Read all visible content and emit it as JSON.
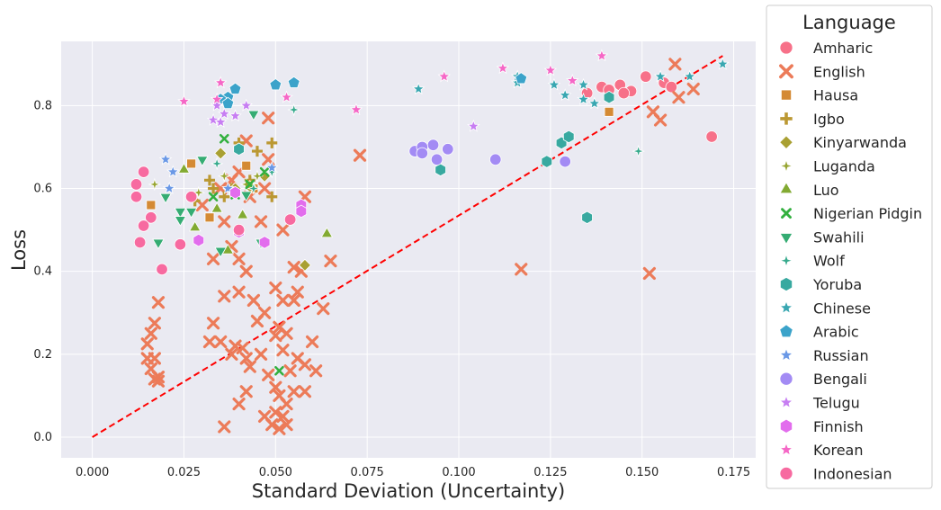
{
  "chart_data": {
    "type": "scatter",
    "title": "",
    "xlabel": "Standard Deviation (Uncertainty)",
    "ylabel": "Loss",
    "xlim": [
      -0.0085,
      0.181
    ],
    "ylim": [
      -0.05,
      0.955
    ],
    "xticks": [
      0.0,
      0.025,
      0.05,
      0.075,
      0.1,
      0.125,
      0.15,
      0.175
    ],
    "xtick_labels": [
      "0.000",
      "0.025",
      "0.050",
      "0.075",
      "0.100",
      "0.125",
      "0.150",
      "0.175"
    ],
    "yticks": [
      0.0,
      0.2,
      0.4,
      0.6,
      0.8
    ],
    "ytick_labels": [
      "0.0",
      "0.2",
      "0.4",
      "0.6",
      "0.8"
    ],
    "grid": true,
    "background": "#eaeaf2",
    "legend": {
      "title": "Language",
      "placement": "right-outside"
    },
    "reference_line": {
      "style": "dashed",
      "color": "#ff0000",
      "x": [
        0.0,
        0.172
      ],
      "y": [
        0.0,
        0.92
      ]
    },
    "series": [
      {
        "name": "Amharic",
        "color": "#f77189",
        "marker": "circle",
        "points": [
          [
            0.151,
            0.87
          ],
          [
            0.144,
            0.85
          ],
          [
            0.139,
            0.845
          ],
          [
            0.141,
            0.838
          ],
          [
            0.147,
            0.835
          ],
          [
            0.135,
            0.83
          ],
          [
            0.156,
            0.855
          ],
          [
            0.158,
            0.845
          ],
          [
            0.169,
            0.725
          ],
          [
            0.145,
            0.83
          ]
        ]
      },
      {
        "name": "English",
        "color": "#ec7b59",
        "marker": "x",
        "points": [
          [
            0.159,
            0.9
          ],
          [
            0.164,
            0.84
          ],
          [
            0.153,
            0.785
          ],
          [
            0.16,
            0.82
          ],
          [
            0.155,
            0.765
          ],
          [
            0.073,
            0.68
          ],
          [
            0.117,
            0.405
          ],
          [
            0.152,
            0.395
          ],
          [
            0.048,
            0.77
          ],
          [
            0.042,
            0.715
          ],
          [
            0.058,
            0.58
          ],
          [
            0.048,
            0.67
          ],
          [
            0.04,
            0.64
          ],
          [
            0.036,
            0.52
          ],
          [
            0.046,
            0.52
          ],
          [
            0.052,
            0.5
          ],
          [
            0.033,
            0.43
          ],
          [
            0.038,
            0.46
          ],
          [
            0.04,
            0.43
          ],
          [
            0.042,
            0.4
          ],
          [
            0.055,
            0.41
          ],
          [
            0.057,
            0.4
          ],
          [
            0.065,
            0.425
          ],
          [
            0.056,
            0.35
          ],
          [
            0.05,
            0.36
          ],
          [
            0.044,
            0.33
          ],
          [
            0.04,
            0.35
          ],
          [
            0.036,
            0.34
          ],
          [
            0.047,
            0.3
          ],
          [
            0.052,
            0.33
          ],
          [
            0.045,
            0.28
          ],
          [
            0.033,
            0.275
          ],
          [
            0.051,
            0.265
          ],
          [
            0.055,
            0.33
          ],
          [
            0.063,
            0.31
          ],
          [
            0.018,
            0.325
          ],
          [
            0.017,
            0.275
          ],
          [
            0.016,
            0.25
          ],
          [
            0.015,
            0.225
          ],
          [
            0.015,
            0.19
          ],
          [
            0.017,
            0.19
          ],
          [
            0.016,
            0.165
          ],
          [
            0.018,
            0.145
          ],
          [
            0.017,
            0.14
          ],
          [
            0.018,
            0.135
          ],
          [
            0.032,
            0.23
          ],
          [
            0.035,
            0.23
          ],
          [
            0.039,
            0.22
          ],
          [
            0.041,
            0.215
          ],
          [
            0.038,
            0.2
          ],
          [
            0.042,
            0.19
          ],
          [
            0.043,
            0.17
          ],
          [
            0.046,
            0.2
          ],
          [
            0.048,
            0.15
          ],
          [
            0.05,
            0.12
          ],
          [
            0.051,
            0.1
          ],
          [
            0.053,
            0.08
          ],
          [
            0.05,
            0.06
          ],
          [
            0.052,
            0.05
          ],
          [
            0.047,
            0.05
          ],
          [
            0.049,
            0.03
          ],
          [
            0.053,
            0.03
          ],
          [
            0.051,
            0.02
          ],
          [
            0.036,
            0.025
          ],
          [
            0.042,
            0.11
          ],
          [
            0.04,
            0.08
          ],
          [
            0.055,
            0.11
          ],
          [
            0.058,
            0.11
          ],
          [
            0.054,
            0.16
          ],
          [
            0.056,
            0.19
          ],
          [
            0.058,
            0.175
          ],
          [
            0.061,
            0.16
          ],
          [
            0.052,
            0.21
          ],
          [
            0.05,
            0.245
          ],
          [
            0.053,
            0.25
          ],
          [
            0.06,
            0.23
          ],
          [
            0.043,
            0.58
          ],
          [
            0.038,
            0.62
          ],
          [
            0.047,
            0.6
          ],
          [
            0.035,
            0.6
          ],
          [
            0.03,
            0.56
          ]
        ]
      },
      {
        "name": "Hausa",
        "color": "#d48a34",
        "marker": "square",
        "points": [
          [
            0.141,
            0.785
          ],
          [
            0.027,
            0.66
          ],
          [
            0.042,
            0.655
          ],
          [
            0.032,
            0.53
          ],
          [
            0.016,
            0.56
          ],
          [
            0.044,
            0.6
          ]
        ]
      },
      {
        "name": "Igbo",
        "color": "#bb9832",
        "marker": "plus",
        "points": [
          [
            0.049,
            0.71
          ],
          [
            0.045,
            0.69
          ],
          [
            0.032,
            0.62
          ],
          [
            0.043,
            0.62
          ],
          [
            0.049,
            0.58
          ],
          [
            0.038,
            0.6
          ],
          [
            0.036,
            0.58
          ],
          [
            0.033,
            0.6
          ],
          [
            0.04,
            0.71
          ],
          [
            0.028,
            0.57
          ]
        ]
      },
      {
        "name": "Kinyarwanda",
        "color": "#a9a032",
        "marker": "diamond",
        "points": [
          [
            0.035,
            0.685
          ],
          [
            0.043,
            0.605
          ],
          [
            0.039,
            0.6
          ],
          [
            0.058,
            0.415
          ],
          [
            0.047,
            0.63
          ]
        ]
      },
      {
        "name": "Luganda",
        "color": "#97a532",
        "marker": "star4",
        "points": [
          [
            0.017,
            0.61
          ],
          [
            0.036,
            0.63
          ],
          [
            0.042,
            0.61
          ],
          [
            0.029,
            0.59
          ],
          [
            0.045,
            0.63
          ]
        ]
      },
      {
        "name": "Luo",
        "color": "#82aa32",
        "marker": "triangle-up",
        "points": [
          [
            0.025,
            0.645
          ],
          [
            0.028,
            0.505
          ],
          [
            0.064,
            0.49
          ],
          [
            0.037,
            0.45
          ],
          [
            0.034,
            0.55
          ],
          [
            0.041,
            0.535
          ]
        ]
      },
      {
        "name": "Nigerian Pidgin",
        "color": "#33b03f",
        "marker": "x-small",
        "points": [
          [
            0.036,
            0.72
          ],
          [
            0.043,
            0.61
          ],
          [
            0.039,
            0.585
          ],
          [
            0.051,
            0.16
          ],
          [
            0.047,
            0.64
          ],
          [
            0.033,
            0.58
          ]
        ]
      },
      {
        "name": "Swahili",
        "color": "#35ac73",
        "marker": "triangle-down",
        "points": [
          [
            0.03,
            0.67
          ],
          [
            0.044,
            0.78
          ],
          [
            0.02,
            0.58
          ],
          [
            0.018,
            0.47
          ],
          [
            0.024,
            0.545
          ],
          [
            0.027,
            0.545
          ],
          [
            0.035,
            0.45
          ],
          [
            0.042,
            0.585
          ],
          [
            0.046,
            0.47
          ],
          [
            0.024,
            0.525
          ]
        ]
      },
      {
        "name": "Wolf",
        "color": "#37aa8d",
        "marker": "star4",
        "points": [
          [
            0.055,
            0.79
          ],
          [
            0.049,
            0.64
          ],
          [
            0.044,
            0.6
          ],
          [
            0.034,
            0.66
          ],
          [
            0.149,
            0.69
          ]
        ]
      },
      {
        "name": "Yoruba",
        "color": "#38a9a0",
        "marker": "hexagon",
        "points": [
          [
            0.135,
            0.53
          ],
          [
            0.128,
            0.71
          ],
          [
            0.13,
            0.725
          ],
          [
            0.141,
            0.82
          ],
          [
            0.124,
            0.665
          ],
          [
            0.095,
            0.645
          ],
          [
            0.04,
            0.695
          ]
        ]
      },
      {
        "name": "Chinese",
        "color": "#39a7b1",
        "marker": "star",
        "points": [
          [
            0.172,
            0.9
          ],
          [
            0.155,
            0.87
          ],
          [
            0.163,
            0.87
          ],
          [
            0.116,
            0.855
          ],
          [
            0.126,
            0.85
          ],
          [
            0.134,
            0.85
          ],
          [
            0.129,
            0.825
          ],
          [
            0.134,
            0.815
          ],
          [
            0.137,
            0.805
          ],
          [
            0.089,
            0.84
          ],
          [
            0.116,
            0.87
          ]
        ]
      },
      {
        "name": "Arabic",
        "color": "#3ba3ca",
        "marker": "pentagon",
        "points": [
          [
            0.117,
            0.865
          ],
          [
            0.055,
            0.855
          ],
          [
            0.05,
            0.85
          ],
          [
            0.039,
            0.84
          ],
          [
            0.037,
            0.82
          ],
          [
            0.035,
            0.815
          ],
          [
            0.037,
            0.805
          ]
        ]
      },
      {
        "name": "Russian",
        "color": "#6a98e6",
        "marker": "star",
        "points": [
          [
            0.02,
            0.67
          ],
          [
            0.022,
            0.64
          ],
          [
            0.021,
            0.6
          ],
          [
            0.049,
            0.65
          ],
          [
            0.037,
            0.6
          ]
        ]
      },
      {
        "name": "Bengali",
        "color": "#a38bf4",
        "marker": "circle",
        "points": [
          [
            0.093,
            0.705
          ],
          [
            0.088,
            0.69
          ],
          [
            0.09,
            0.7
          ],
          [
            0.097,
            0.695
          ],
          [
            0.09,
            0.685
          ],
          [
            0.094,
            0.67
          ],
          [
            0.11,
            0.67
          ],
          [
            0.129,
            0.665
          ]
        ]
      },
      {
        "name": "Telugu",
        "color": "#c77ef2",
        "marker": "star",
        "points": [
          [
            0.104,
            0.75
          ],
          [
            0.036,
            0.78
          ],
          [
            0.039,
            0.775
          ],
          [
            0.033,
            0.765
          ],
          [
            0.035,
            0.76
          ],
          [
            0.042,
            0.8
          ],
          [
            0.034,
            0.8
          ]
        ]
      },
      {
        "name": "Finnish",
        "color": "#e26ded",
        "marker": "hexagon",
        "points": [
          [
            0.057,
            0.56
          ],
          [
            0.057,
            0.545
          ],
          [
            0.039,
            0.59
          ],
          [
            0.029,
            0.475
          ],
          [
            0.047,
            0.47
          ],
          [
            0.04,
            0.495
          ]
        ]
      },
      {
        "name": "Korean",
        "color": "#f567c6",
        "marker": "star",
        "points": [
          [
            0.139,
            0.92
          ],
          [
            0.112,
            0.89
          ],
          [
            0.125,
            0.885
          ],
          [
            0.131,
            0.86
          ],
          [
            0.096,
            0.87
          ],
          [
            0.072,
            0.79
          ],
          [
            0.053,
            0.82
          ],
          [
            0.025,
            0.81
          ],
          [
            0.035,
            0.855
          ],
          [
            0.034,
            0.815
          ]
        ]
      },
      {
        "name": "Indonesian",
        "color": "#f76aa0",
        "marker": "circle",
        "points": [
          [
            0.014,
            0.64
          ],
          [
            0.012,
            0.58
          ],
          [
            0.012,
            0.61
          ],
          [
            0.016,
            0.53
          ],
          [
            0.014,
            0.51
          ],
          [
            0.013,
            0.47
          ],
          [
            0.019,
            0.405
          ],
          [
            0.024,
            0.465
          ],
          [
            0.027,
            0.58
          ],
          [
            0.054,
            0.525
          ],
          [
            0.04,
            0.5
          ]
        ]
      }
    ]
  }
}
